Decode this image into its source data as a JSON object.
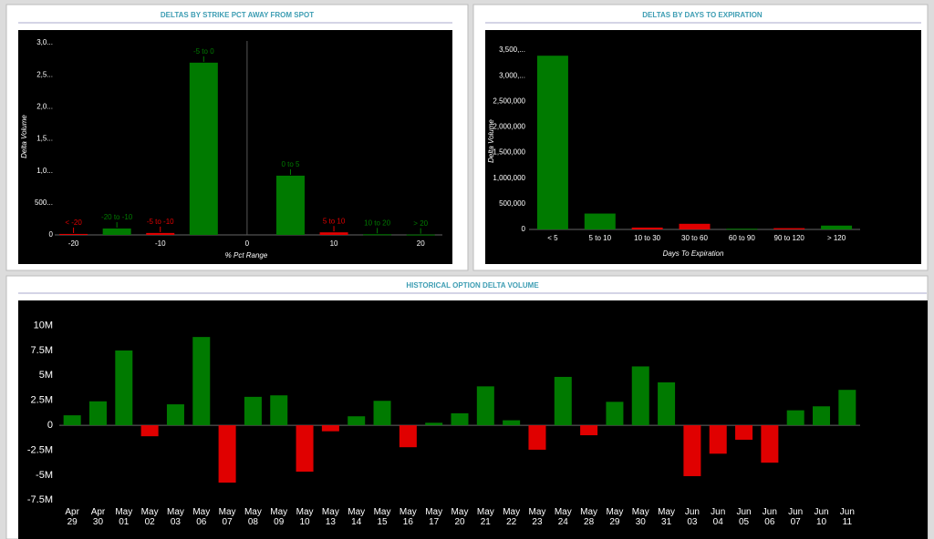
{
  "chart_data": [
    {
      "type": "bar",
      "title": "DELTAS BY STRIKE PCT AWAY FROM SPOT",
      "x_label": "% Pct Range",
      "y_label": "Delta Volume",
      "categories": [
        "< -20",
        "-20 to -10",
        "-5 to -10",
        "-5 to 0",
        "0 to 5",
        "5 to 10",
        "10 to 20",
        "> 20"
      ],
      "x": [
        -20,
        -15,
        -10,
        -5,
        5,
        10,
        15,
        20
      ],
      "values": [
        15,
        100,
        30,
        2690,
        925,
        40,
        10,
        5
      ],
      "colors": [
        "#e00000",
        "#007a00",
        "#e00000",
        "#007a00",
        "#007a00",
        "#e00000",
        "#007a00",
        "#007a00"
      ],
      "xlim": [
        -25,
        22.5
      ],
      "xticks": [
        -20,
        -10,
        0,
        10,
        20
      ],
      "ylim": [
        0,
        3100
      ],
      "yticks": [
        0,
        {
          "value": 500,
          "label": "500..."
        },
        {
          "value": 1000,
          "label": "1,0..."
        },
        {
          "value": 1500,
          "label": "1,5..."
        },
        {
          "value": 2000,
          "label": "2,0..."
        },
        {
          "value": 2500,
          "label": "2,5..."
        },
        {
          "value": 3000,
          "label": "3,0..."
        }
      ]
    },
    {
      "type": "bar",
      "title": "DELTAS BY DAYS TO EXPIRATION",
      "x_label": "Days To Expiration",
      "y_label": "Delta Volume",
      "categories": [
        "< 5",
        "5 to 10",
        "10 to 30",
        "30 to 60",
        "60 to 90",
        "90 to 120",
        "> 120"
      ],
      "values": [
        3390000,
        310000,
        37000,
        110000,
        15000,
        25000,
        75000
      ],
      "colors": [
        "#007a00",
        "#007a00",
        "#e00000",
        "#e00000",
        "#007a00",
        "#e00000",
        "#007a00"
      ],
      "ylim": [
        0,
        3500000
      ],
      "yticks": [
        0,
        {
          "value": 500000,
          "label": "500,000"
        },
        {
          "value": 1000000,
          "label": "1,000,000"
        },
        {
          "value": 1500000,
          "label": "1,500,000"
        },
        {
          "value": 2000000,
          "label": "2,000,000"
        },
        {
          "value": 2500000,
          "label": "2,500,000"
        },
        {
          "value": 3000000,
          "label": "3,000,..."
        },
        {
          "value": 3500000,
          "label": "3,500,..."
        }
      ]
    },
    {
      "type": "bar",
      "title": "HISTORICAL OPTION DELTA VOLUME",
      "categories": [
        "Apr 29",
        "Apr 30",
        "May 01",
        "May 02",
        "May 03",
        "May 06",
        "May 07",
        "May 08",
        "May 09",
        "May 10",
        "May 13",
        "May 14",
        "May 15",
        "May 16",
        "May 17",
        "May 20",
        "May 21",
        "May 22",
        "May 23",
        "May 24",
        "May 28",
        "May 29",
        "May 30",
        "May 31",
        "Jun 03",
        "Jun 04",
        "Jun 05",
        "Jun 06",
        "Jun 07",
        "Jun 10",
        "Jun 11"
      ],
      "values": [
        1000000,
        2400000,
        7500000,
        -1100000,
        2100000,
        8850000,
        -5750000,
        2850000,
        3000000,
        -4650000,
        -600000,
        900000,
        2450000,
        -2200000,
        250000,
        1200000,
        3900000,
        500000,
        -2450000,
        4850000,
        -1000000,
        2350000,
        5900000,
        4300000,
        -5100000,
        -2850000,
        -1450000,
        -3750000,
        1500000,
        1900000,
        3550000
      ],
      "positive_color": "#007a00",
      "negative_color": "#e00000",
      "ylim": [
        -7750000,
        11600000
      ],
      "yticks": [
        {
          "value": 10000000,
          "label": "10M"
        },
        {
          "value": 7500000,
          "label": "7.5M"
        },
        {
          "value": 5000000,
          "label": "5M"
        },
        {
          "value": 2500000,
          "label": "2.5M"
        },
        0,
        {
          "value": -2500000,
          "label": "-2.5M"
        },
        {
          "value": -5000000,
          "label": "-5M"
        },
        {
          "value": -7500000,
          "label": "-7.5M"
        }
      ]
    }
  ]
}
